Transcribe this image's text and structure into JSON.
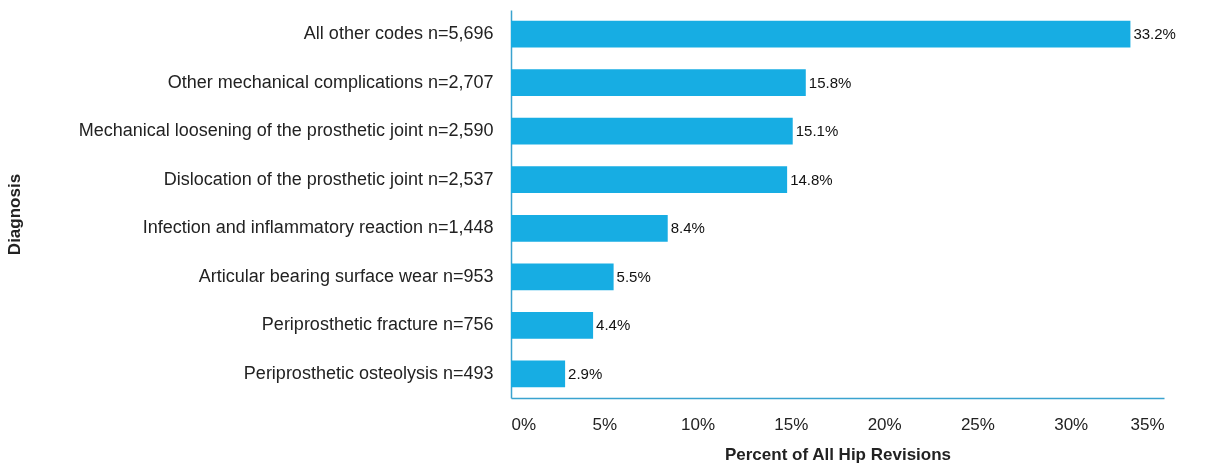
{
  "chart_data": {
    "type": "bar",
    "orientation": "horizontal",
    "xlabel": "Percent of All Hip Revisions",
    "ylabel": "Diagnosis",
    "categories": [
      "All other codes n=5,696",
      "Other mechanical complications n=2,707",
      "Mechanical loosening of the prosthetic joint n=2,590",
      "Dislocation of the prosthetic joint n=2,537",
      "Infection and inflammatory reaction n=1,448",
      "Articular bearing surface wear n=953",
      "Periprosthetic fracture n=756",
      "Periprosthetic osteolysis n=493"
    ],
    "values": [
      33.2,
      15.8,
      15.1,
      14.8,
      8.4,
      5.5,
      4.4,
      2.9
    ],
    "value_labels": [
      "33.2%",
      "15.8%",
      "15.1%",
      "14.8%",
      "8.4%",
      "5.5%",
      "4.4%",
      "2.9%"
    ],
    "color": "#17ade3",
    "xlim": [
      0,
      35
    ],
    "xticks": [
      {
        "value": 0,
        "label": "0%"
      },
      {
        "value": 5,
        "label": "5%"
      },
      {
        "value": 10,
        "label": "10%"
      },
      {
        "value": 15,
        "label": "15%"
      },
      {
        "value": 20,
        "label": "20%"
      },
      {
        "value": 25,
        "label": "25%"
      },
      {
        "value": 30,
        "label": "30%"
      },
      {
        "value": 35,
        "label": "35%"
      }
    ]
  }
}
